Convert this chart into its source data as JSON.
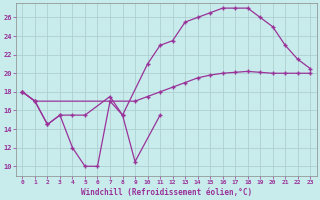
{
  "bg_color": "#c8ecec",
  "plot_bg_color": "#c8ecec",
  "line_color": "#993399",
  "grid_color": "#b0d0d0",
  "xlim": [
    -0.5,
    23.5
  ],
  "ylim": [
    9,
    27.5
  ],
  "xtick_labels": [
    "0",
    "1",
    "2",
    "3",
    "4",
    "5",
    "6",
    "7",
    "8",
    "9",
    "10",
    "11",
    "12",
    "13",
    "14",
    "15",
    "16",
    "17",
    "18",
    "19",
    "20",
    "21",
    "22",
    "23"
  ],
  "xticks": [
    0,
    1,
    2,
    3,
    4,
    5,
    6,
    7,
    8,
    9,
    10,
    11,
    12,
    13,
    14,
    15,
    16,
    17,
    18,
    19,
    20,
    21,
    22,
    23
  ],
  "yticks": [
    10,
    12,
    14,
    16,
    18,
    20,
    22,
    24,
    26
  ],
  "xlabel": "Windchill (Refroidissement éolien,°C)",
  "line1_x": [
    0,
    1,
    2,
    3,
    4,
    5,
    6,
    7,
    8,
    9,
    11
  ],
  "line1_y": [
    18,
    17,
    14.5,
    15.5,
    12,
    10,
    10,
    17,
    15.5,
    10.5,
    15.5
  ],
  "line2_x": [
    0,
    1,
    2,
    3,
    4,
    5,
    7,
    8,
    10,
    11,
    12,
    13,
    14,
    15,
    16,
    17,
    18,
    19,
    20,
    21,
    22,
    23
  ],
  "line2_y": [
    18,
    17,
    14.5,
    15.5,
    15.5,
    15.5,
    17.5,
    15.5,
    21,
    23,
    23.5,
    25.5,
    26,
    26.5,
    27,
    27,
    27,
    26,
    25,
    23,
    21.5,
    20.5
  ],
  "line3_x": [
    0,
    1,
    9,
    10,
    11,
    12,
    13,
    14,
    15,
    16,
    17,
    18,
    19,
    20,
    21,
    22,
    23
  ],
  "line3_y": [
    18,
    17,
    17,
    17.5,
    18,
    18.5,
    19,
    19.5,
    19.8,
    20,
    20.1,
    20.2,
    20.1,
    20,
    20,
    20,
    20
  ]
}
